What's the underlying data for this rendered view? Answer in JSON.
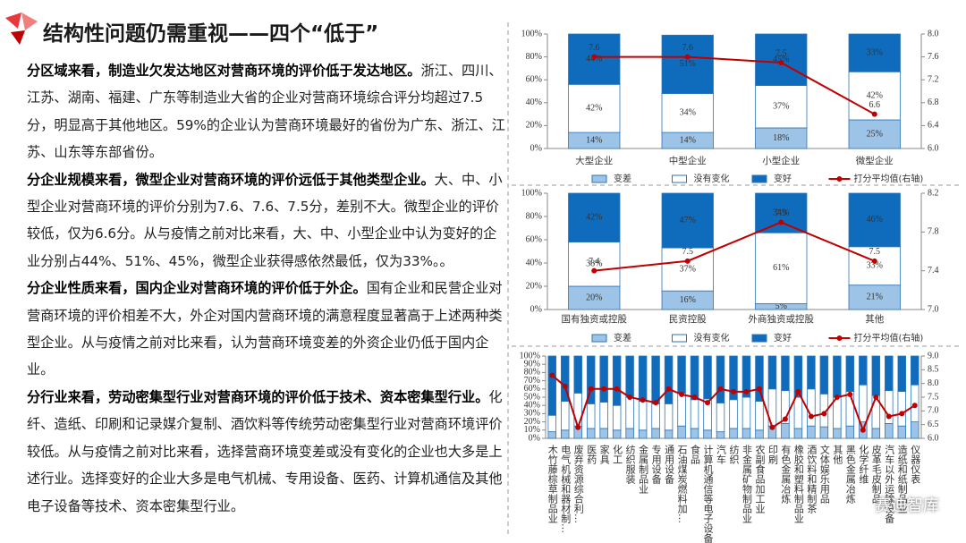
{
  "title": "结构性问题仍需重视——四个“低于”",
  "paragraphs": [
    {
      "bold": "分区域来看，制造业欠发达地区对营商环境的评价低于发达地区。",
      "text": "浙江、四川、江苏、湖南、福建、广东等制造业大省的企业对营商环境综合评分均超过7.5分，明显高于其他地区。59%的企业认为营商环境最好的省份为广东、浙江、江苏、山东等东部省份。"
    },
    {
      "bold": "分企业规模来看，微型企业对营商环境的评价远低于其他类型企业。",
      "text": "大、中、小型企业对营商环境的评价分别为7.6、7.6、7.5分，差别不大。微型企业的评价较低，仅为6.6分。从与疫情之前对比来看，大、中、小型企业中认为变好的企业分别占44%、51%、45%，微型企业获得感依然最低，仅为33%。。"
    },
    {
      "bold": "分企业性质来看，国内企业对营商环境的评价低于外企。",
      "text": "国有企业和民营企业对营商环境的评价相差不大，外企对国内营商环境的满意程度显著高于上述两种类型企业。从与疫情之前对比来看，认为营商环境变差的外资企业仍低于国内企业。"
    },
    {
      "bold": "分行业来看，劳动密集型行业对营商环境的评价低于技术、资本密集型行业。",
      "text": "化纤、造纸、印刷和记录媒介复制、酒饮料等传统劳动密集型行业对营商环境评价较低。从与疫情之前对比来看，选择营商环境变差或没有变化的企业也大多是上述行业。选择变好的企业大多是电气机械、专用设备、医药、计算机通信及其他电子设备等技术、资本密集型行业。"
    }
  ],
  "logo": "赛迪智库",
  "chart_data": [
    {
      "type": "bar",
      "stacked": true,
      "bar_edge_color": "#2e75b6",
      "line_labels": true,
      "legend": "bottom",
      "categories": [
        "大型企业",
        "中型企业",
        "小型企业",
        "微型企业"
      ],
      "series": [
        {
          "name": "变差",
          "color": "#9dc3e6",
          "values": [
            14,
            14,
            18,
            25
          ],
          "value_labels": [
            "14%",
            "14%",
            "18%",
            "25%"
          ]
        },
        {
          "name": "没有变化",
          "color": "#ffffff",
          "values": [
            42,
            34,
            37,
            42
          ],
          "value_labels": [
            "42%",
            "34%",
            "37%",
            "42%"
          ]
        },
        {
          "name": "变好",
          "color": "#0f6cbd",
          "values": [
            44,
            51,
            45,
            33
          ],
          "value_labels": [
            "44%",
            "51%",
            "45%",
            "33%"
          ]
        },
        {
          "name": "打分平均值(右轴)",
          "type": "line",
          "axis": "y2",
          "color": "#c00000",
          "values": [
            7.6,
            7.6,
            7.5,
            6.6
          ]
        }
      ],
      "ylim": [
        0,
        100
      ],
      "yticks": [
        {
          "value": 0,
          "label": "0%"
        },
        {
          "value": 20,
          "label": "20%"
        },
        {
          "value": 40,
          "label": "40%"
        },
        {
          "value": 60,
          "label": "60%"
        },
        {
          "value": 80,
          "label": "80%"
        },
        {
          "value": 100,
          "label": "100%"
        }
      ],
      "y2lim": [
        6,
        8
      ],
      "y2ticks": [
        {
          "value": 6,
          "label": "6.0"
        },
        6.4,
        6.8,
        7.2,
        7.6,
        {
          "value": 8,
          "label": "8.0"
        }
      ]
    },
    {
      "type": "bar",
      "stacked": true,
      "bar_edge_color": "#2e75b6",
      "line_labels": true,
      "legend": "bottom",
      "categories": [
        "国有独资或控股",
        "民资控股",
        "外商独资或控股",
        "其他"
      ],
      "series": [
        {
          "name": "变差",
          "color": "#9dc3e6",
          "values": [
            20,
            16,
            5,
            21
          ],
          "value_labels": [
            "20%",
            "16%",
            "5%",
            "21%"
          ]
        },
        {
          "name": "没有变化",
          "color": "#ffffff",
          "values": [
            38,
            37,
            61,
            33
          ],
          "value_labels": [
            "38%",
            "37%",
            "61%",
            "33%"
          ]
        },
        {
          "name": "变好",
          "color": "#0f6cbd",
          "values": [
            42,
            47,
            34,
            46
          ],
          "value_labels": [
            "42%",
            "47%",
            "34%",
            "46%"
          ]
        },
        {
          "name": "打分平均值(右轴)",
          "type": "line",
          "axis": "y2",
          "color": "#c00000",
          "values": [
            7.4,
            7.5,
            7.9,
            7.5
          ]
        }
      ],
      "ylim": [
        0,
        100
      ],
      "yticks": [
        {
          "value": 0,
          "label": "0%"
        },
        {
          "value": 20,
          "label": "20%"
        },
        {
          "value": 40,
          "label": "40%"
        },
        {
          "value": 60,
          "label": "60%"
        },
        {
          "value": 80,
          "label": "80%"
        },
        {
          "value": 100,
          "label": "100%"
        }
      ],
      "y2lim": [
        7,
        8.2
      ],
      "y2ticks": [
        {
          "value": 7,
          "label": "7.0"
        },
        7.4,
        7.8,
        8.2
      ]
    },
    {
      "type": "bar",
      "stacked": true,
      "bar_edge_color": "#2e75b6",
      "line_labels": false,
      "vertical_categories": true,
      "categories": [
        "木竹藤棕草制品业",
        "电气机械和器材制…",
        "废弃资源综合利…",
        "医药",
        "家具",
        "化工",
        "纺织服装",
        "金属制品业",
        "专用设备",
        "通用设备",
        "石油煤炭燃料加…",
        "食品",
        "计算机通信等电子设备",
        "汽车",
        "纺织",
        "非金属矿物制品业",
        "农副食品加工业",
        "印刷",
        "有色金属冶炼",
        "橡胶和塑料制品业",
        "酒饮料和精制茶",
        "文体娱乐用品",
        "其他",
        "黑色金属冶炼",
        "化学纤维",
        "皮革毛皮制品",
        "汽车以外运输设备",
        "造纸和纸制品业",
        "仪器仪表"
      ],
      "series": [
        {
          "color": "#9dc3e6",
          "values": [
            8,
            10,
            15,
            12,
            12,
            10,
            12,
            10,
            12,
            10,
            15,
            12,
            10,
            8,
            12,
            12,
            10,
            15,
            18,
            12,
            15,
            14,
            12,
            15,
            20,
            12,
            18,
            15,
            20
          ]
        },
        {
          "color": "#ffffff",
          "values": [
            20,
            35,
            40,
            30,
            32,
            30,
            38,
            35,
            30,
            32,
            40,
            35,
            38,
            35,
            35,
            38,
            35,
            45,
            40,
            38,
            45,
            40,
            38,
            42,
            45,
            40,
            40,
            42,
            45
          ]
        },
        {
          "color": "#0f6cbd",
          "values": [
            72,
            55,
            45,
            58,
            56,
            60,
            50,
            55,
            58,
            58,
            45,
            53,
            52,
            57,
            53,
            50,
            55,
            40,
            42,
            50,
            40,
            46,
            50,
            43,
            35,
            48,
            42,
            43,
            35
          ]
        },
        {
          "type": "line",
          "axis": "y2",
          "color": "#c00000",
          "values": [
            8.3,
            7.9,
            6.4,
            7.8,
            7.8,
            7.8,
            7.5,
            7.4,
            7.3,
            7.8,
            7.6,
            7.5,
            7.3,
            7.8,
            7.7,
            7.7,
            7.8,
            6.4,
            6.7,
            7.7,
            6.8,
            6.9,
            7.5,
            7.6,
            6.3,
            7.5,
            6.8,
            6.9,
            7.2
          ]
        }
      ],
      "ylim": [
        0,
        100
      ],
      "yticks": [
        {
          "value": 0,
          "label": "0%"
        },
        {
          "value": 10,
          "label": "10%"
        },
        {
          "value": 20,
          "label": "20%"
        },
        {
          "value": 30,
          "label": "30%"
        },
        {
          "value": 40,
          "label": "40%"
        },
        {
          "value": 50,
          "label": "50%"
        },
        {
          "value": 60,
          "label": "60%"
        },
        {
          "value": 70,
          "label": "70%"
        },
        {
          "value": 80,
          "label": "80%"
        },
        {
          "value": 90,
          "label": "90%"
        },
        {
          "value": 100,
          "label": "100%"
        }
      ],
      "y2lim": [
        6,
        9
      ],
      "y2ticks": [
        {
          "value": 6,
          "label": "6.0"
        },
        6.5,
        {
          "value": 7,
          "label": "7.0"
        },
        7.5,
        {
          "value": 8,
          "label": "8.0"
        },
        8.5,
        {
          "value": 9,
          "label": "9.0"
        }
      ]
    }
  ]
}
